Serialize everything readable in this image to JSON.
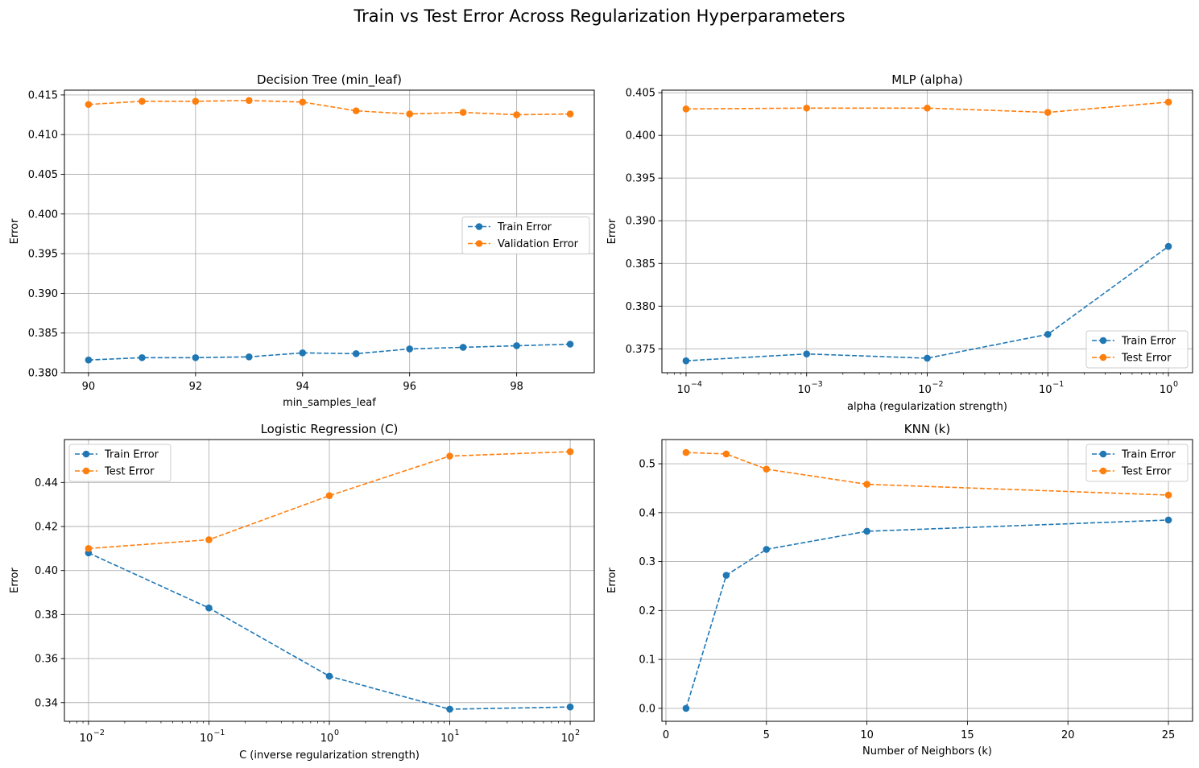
{
  "figure": {
    "suptitle": "Train vs Test Error Across Regularization Hyperparameters"
  },
  "colors": {
    "train": "#1f77b4",
    "test": "#ff7f0e",
    "grid": "#b0b0b0"
  },
  "chart_data": [
    {
      "type": "line",
      "title": "Decision Tree (min_leaf)",
      "xlabel": "min_samples_leaf",
      "ylabel": "Error",
      "xscale": "linear",
      "xlim": [
        89.55,
        99.45
      ],
      "ylim": [
        0.38,
        0.4156
      ],
      "xticks": [
        90,
        92,
        94,
        96,
        98
      ],
      "xtick_labels": [
        "90",
        "92",
        "94",
        "96",
        "98"
      ],
      "yticks": [
        0.38,
        0.385,
        0.39,
        0.395,
        0.4,
        0.405,
        0.41,
        0.415
      ],
      "ytick_labels": [
        "0.380",
        "0.385",
        "0.390",
        "0.395",
        "0.400",
        "0.405",
        "0.410",
        "0.415"
      ],
      "grid": true,
      "legend": "center-right",
      "x": [
        90,
        91,
        92,
        93,
        94,
        95,
        96,
        97,
        98,
        99
      ],
      "series": [
        {
          "name": "Train Error",
          "color": "#1f77b4",
          "values": [
            0.3816,
            0.3819,
            0.3819,
            0.382,
            0.3825,
            0.3824,
            0.383,
            0.3832,
            0.3834,
            0.3836
          ]
        },
        {
          "name": "Validation Error",
          "color": "#ff7f0e",
          "values": [
            0.4138,
            0.4142,
            0.4142,
            0.4143,
            0.4141,
            0.413,
            0.4126,
            0.4128,
            0.4125,
            0.4126
          ]
        }
      ]
    },
    {
      "type": "line",
      "title": "MLP (alpha)",
      "xlabel": "alpha (regularization strength)",
      "ylabel": "Error",
      "xscale": "log",
      "xlim": [
        6.31e-05,
        1.585
      ],
      "ylim": [
        0.3722,
        0.4053
      ],
      "xticks": [
        0.0001,
        0.001,
        0.01,
        0.1,
        1
      ],
      "xtick_labels": [
        [
          "10",
          "−4"
        ],
        [
          "10",
          "−3"
        ],
        [
          "10",
          "−2"
        ],
        [
          "10",
          "−1"
        ],
        [
          "10",
          "0"
        ]
      ],
      "yticks": [
        0.375,
        0.38,
        0.385,
        0.39,
        0.395,
        0.4,
        0.405
      ],
      "ytick_labels": [
        "0.375",
        "0.380",
        "0.385",
        "0.390",
        "0.395",
        "0.400",
        "0.405"
      ],
      "grid": true,
      "legend": "lower-right",
      "x": [
        0.0001,
        0.001,
        0.01,
        0.1,
        1
      ],
      "series": [
        {
          "name": "Train Error",
          "color": "#1f77b4",
          "values": [
            0.3736,
            0.3744,
            0.3739,
            0.3767,
            0.387
          ]
        },
        {
          "name": "Test Error",
          "color": "#ff7f0e",
          "values": [
            0.4031,
            0.4032,
            0.4032,
            0.4027,
            0.4039
          ]
        }
      ]
    },
    {
      "type": "line",
      "title": "Logistic Regression (C)",
      "xlabel": "C (inverse regularization strength)",
      "ylabel": "Error",
      "xscale": "log",
      "xlim": [
        0.00631,
        158.5
      ],
      "ylim": [
        0.3315,
        0.4595
      ],
      "xticks": [
        0.01,
        0.1,
        1,
        10,
        100
      ],
      "xtick_labels": [
        [
          "10",
          "−2"
        ],
        [
          "10",
          "−1"
        ],
        [
          "10",
          "0"
        ],
        [
          "10",
          "1"
        ],
        [
          "10",
          "2"
        ]
      ],
      "yticks": [
        0.34,
        0.36,
        0.38,
        0.4,
        0.42,
        0.44
      ],
      "ytick_labels": [
        "0.34",
        "0.36",
        "0.38",
        "0.40",
        "0.42",
        "0.44"
      ],
      "grid": true,
      "legend": "upper-left",
      "x": [
        0.01,
        0.1,
        1,
        10,
        100
      ],
      "series": [
        {
          "name": "Train Error",
          "color": "#1f77b4",
          "values": [
            0.408,
            0.383,
            0.352,
            0.337,
            0.338
          ]
        },
        {
          "name": "Test Error",
          "color": "#ff7f0e",
          "values": [
            0.41,
            0.414,
            0.434,
            0.452,
            0.454
          ]
        }
      ]
    },
    {
      "type": "line",
      "title": "KNN (k)",
      "xlabel": "Number of Neighbors (k)",
      "ylabel": "Error",
      "xscale": "linear",
      "xlim": [
        -0.2,
        26.2
      ],
      "ylim": [
        -0.0265,
        0.5495
      ],
      "xticks": [
        0,
        5,
        10,
        15,
        20,
        25
      ],
      "xtick_labels": [
        "0",
        "5",
        "10",
        "15",
        "20",
        "25"
      ],
      "yticks": [
        0.0,
        0.1,
        0.2,
        0.3,
        0.4,
        0.5
      ],
      "ytick_labels": [
        "0.0",
        "0.1",
        "0.2",
        "0.3",
        "0.4",
        "0.5"
      ],
      "grid": true,
      "legend": "upper-right",
      "x": [
        1,
        3,
        5,
        10,
        25
      ],
      "series": [
        {
          "name": "Train Error",
          "color": "#1f77b4",
          "values": [
            0.0,
            0.272,
            0.325,
            0.362,
            0.385
          ]
        },
        {
          "name": "Test Error",
          "color": "#ff7f0e",
          "values": [
            0.523,
            0.52,
            0.489,
            0.458,
            0.436
          ]
        }
      ]
    }
  ]
}
